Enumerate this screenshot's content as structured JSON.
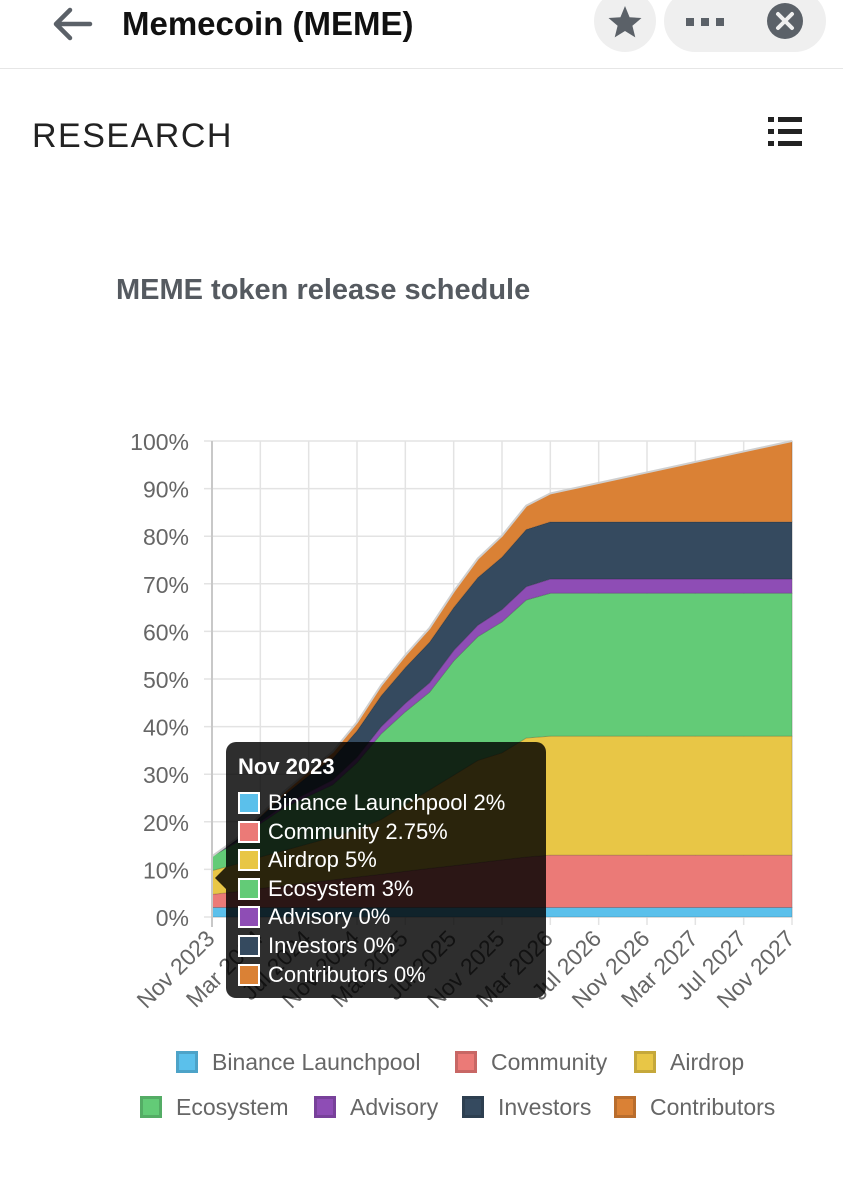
{
  "header": {
    "title": "Memecoin (MEME)",
    "back_icon": "arrow-left-icon",
    "favorite_icon": "star-icon",
    "more_icon": "ellipsis-icon",
    "close_icon": "close-circle-icon"
  },
  "section": {
    "heading": "RESEARCH",
    "menu_icon": "list-icon"
  },
  "chart_data": {
    "type": "area",
    "stacked": true,
    "title": "MEME token release schedule",
    "xlabel": "",
    "ylabel": "",
    "ylim": [
      0,
      100
    ],
    "y_ticks": [
      "0%",
      "10%",
      "20%",
      "30%",
      "40%",
      "50%",
      "60%",
      "70%",
      "80%",
      "90%",
      "100%"
    ],
    "x_ticks": [
      "Nov 2023",
      "Mar 2024",
      "Jul 2024",
      "Nov 2024",
      "Mar 2025",
      "Jul 2025",
      "Nov 2025",
      "Mar 2026",
      "Jul 2026",
      "Nov 2026",
      "Mar 2027",
      "Jul 2027",
      "Nov 2027"
    ],
    "x": [
      "Nov 2023",
      "Jan 2024",
      "Mar 2024",
      "May 2024",
      "Jul 2024",
      "Sep 2024",
      "Nov 2024",
      "Jan 2025",
      "Mar 2025",
      "May 2025",
      "Jul 2025",
      "Sep 2025",
      "Nov 2025",
      "Jan 2026",
      "Mar 2026",
      "Nov 2027"
    ],
    "grid": true,
    "legend_position": "bottom",
    "series": [
      {
        "name": "Binance Launchpool",
        "color": "#5bc0eb",
        "values": [
          2,
          2,
          2,
          2,
          2,
          2,
          2,
          2,
          2,
          2,
          2,
          2,
          2,
          2,
          2,
          2
        ]
      },
      {
        "name": "Community",
        "color": "#eb7a77",
        "values": [
          2.75,
          3.3,
          4,
          4.6,
          5.2,
          5.8,
          6.4,
          7,
          7.6,
          8.2,
          8.8,
          9.4,
          10,
          10.6,
          11,
          11
        ]
      },
      {
        "name": "Airdrop",
        "color": "#e8c646",
        "values": [
          5,
          5.8,
          6.6,
          7.4,
          8.2,
          9,
          10,
          11.5,
          14,
          16.5,
          19,
          21.5,
          22.5,
          25,
          25,
          25
        ]
      },
      {
        "name": "Ecosystem",
        "color": "#63cb77",
        "values": [
          3,
          4.5,
          7,
          9,
          10,
          11,
          14,
          18,
          19.5,
          20.5,
          24,
          26,
          27.5,
          29,
          30,
          30
        ]
      },
      {
        "name": "Advisory",
        "color": "#8e4db5",
        "values": [
          0,
          0.2,
          0.4,
          0.6,
          0.8,
          1,
          1.2,
          1.5,
          1.8,
          2,
          2.2,
          2.4,
          2.6,
          2.8,
          3,
          3
        ]
      },
      {
        "name": "Investors",
        "color": "#354a5f",
        "values": [
          0,
          0.4,
          1,
          2,
          3.5,
          4.5,
          5.5,
          6.5,
          7.5,
          8.5,
          9,
          10,
          11,
          12,
          12,
          12
        ]
      },
      {
        "name": "Contributors",
        "color": "#da8135",
        "values": [
          0,
          0.2,
          0.4,
          0.8,
          1,
          1.4,
          1.8,
          2.2,
          2.6,
          3,
          3.4,
          4,
          4.5,
          5,
          6,
          17
        ]
      }
    ]
  },
  "tooltip": {
    "title": "Nov 2023",
    "rows": [
      {
        "name": "Binance Launchpool",
        "value": "2%",
        "label": "Binance Launchpool 2%",
        "color": "#5bc0eb"
      },
      {
        "name": "Community",
        "value": "2.75%",
        "label": "Community 2.75%",
        "color": "#eb7a77"
      },
      {
        "name": "Airdrop",
        "value": "5%",
        "label": "Airdrop 5%",
        "color": "#e8c646"
      },
      {
        "name": "Ecosystem",
        "value": "3%",
        "label": "Ecosystem 3%",
        "color": "#63cb77"
      },
      {
        "name": "Advisory",
        "value": "0%",
        "label": "Advisory 0%",
        "color": "#8e4db5"
      },
      {
        "name": "Investors",
        "value": "0%",
        "label": "Investors 0%",
        "color": "#354a5f"
      },
      {
        "name": "Contributors",
        "value": "0%",
        "label": "Contributors 0%",
        "color": "#da8135"
      }
    ]
  },
  "legend": {
    "items": [
      {
        "label": "Binance Launchpool",
        "color": "#5bc0eb"
      },
      {
        "label": "Community",
        "color": "#eb7a77"
      },
      {
        "label": "Airdrop",
        "color": "#e8c646"
      },
      {
        "label": "Ecosystem",
        "color": "#63cb77"
      },
      {
        "label": "Advisory",
        "color": "#8e4db5"
      },
      {
        "label": "Investors",
        "color": "#354a5f"
      },
      {
        "label": "Contributors",
        "color": "#da8135"
      }
    ]
  }
}
